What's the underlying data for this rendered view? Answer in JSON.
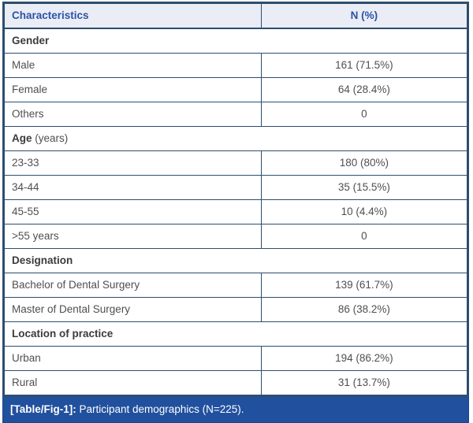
{
  "table": {
    "header": {
      "characteristics": "Characteristics",
      "n_percent": "N (%)"
    },
    "sections": [
      {
        "title": "Gender",
        "suffix": "",
        "rows": [
          {
            "label": "Male",
            "value": "161 (71.5%)"
          },
          {
            "label": "Female",
            "value": "64 (28.4%)"
          },
          {
            "label": "Others",
            "value": "0"
          }
        ]
      },
      {
        "title": "Age",
        "suffix": " (years)",
        "rows": [
          {
            "label": "23-33",
            "value": "180 (80%)"
          },
          {
            "label": "34-44",
            "value": "35 (15.5%)"
          },
          {
            "label": "45-55",
            "value": "10 (4.4%)"
          },
          {
            "label": ">55 years",
            "value": "0"
          }
        ]
      },
      {
        "title": "Designation",
        "suffix": "",
        "rows": [
          {
            "label": "Bachelor of Dental Surgery",
            "value": "139 (61.7%)"
          },
          {
            "label": "Master of Dental Surgery",
            "value": "86 (38.2%)"
          }
        ]
      },
      {
        "title": "Location of practice",
        "suffix": "",
        "rows": [
          {
            "label": "Urban",
            "value": "194 (86.2%)"
          },
          {
            "label": "Rural",
            "value": "31 (13.7%)"
          }
        ]
      }
    ],
    "caption": {
      "label": "[Table/Fig-1]:",
      "text": " Participant demographics (N=225)."
    }
  },
  "colors": {
    "border": "#2d4e6e",
    "header_background": "#eaecf6",
    "header_text": "#2a54a4",
    "caption_background": "#21509e",
    "caption_text": "#ffffff",
    "body_text": "#4f4f4f"
  }
}
